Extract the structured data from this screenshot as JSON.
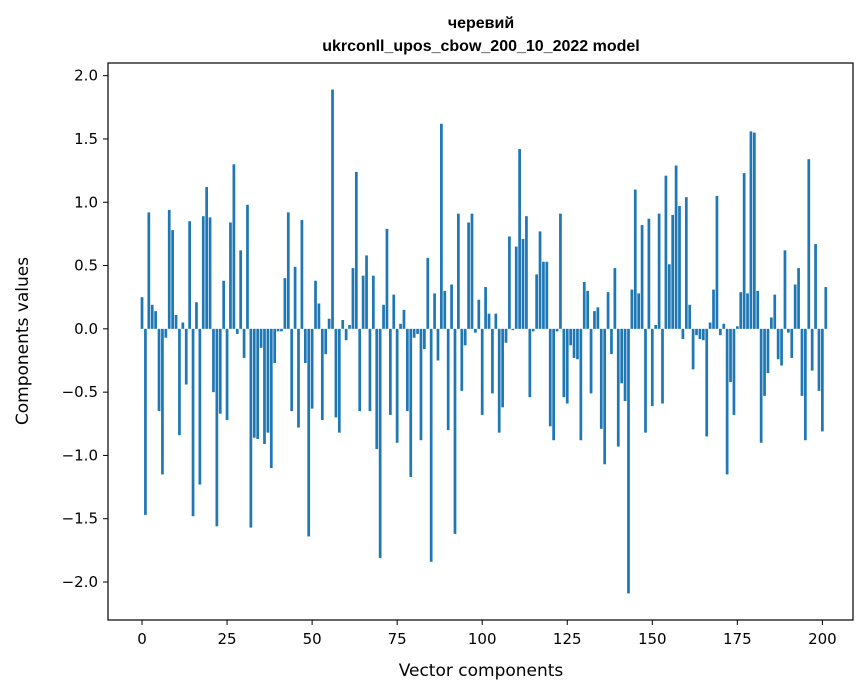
{
  "chart_data": {
    "type": "bar",
    "title_line1": "черевий",
    "title_line2": "ukrconll_upos_cbow_200_10_2022 model",
    "xlabel": "Vector components",
    "ylabel": "Components values",
    "xlim": [
      -10,
      209
    ],
    "ylim": [
      -2.3,
      2.1
    ],
    "x_ticks": [
      0,
      25,
      50,
      75,
      100,
      125,
      150,
      175,
      200
    ],
    "y_ticks": [
      -2.0,
      -1.5,
      -1.0,
      -0.5,
      0.0,
      0.5,
      1.0,
      1.5,
      2.0
    ],
    "x_tick_labels": [
      "0",
      "25",
      "50",
      "75",
      "100",
      "125",
      "150",
      "175",
      "200"
    ],
    "y_tick_labels": [
      "−2.0",
      "−1.5",
      "−1.0",
      "−0.5",
      "0.0",
      "0.5",
      "1.0",
      "1.5",
      "2.0"
    ],
    "bar_color": "#1f77b4",
    "values": [
      0.25,
      -1.47,
      0.92,
      0.19,
      0.14,
      -0.65,
      -1.15,
      -0.07,
      0.94,
      0.78,
      0.11,
      -0.84,
      0.05,
      -0.44,
      0.85,
      -1.48,
      0.21,
      -1.23,
      0.89,
      1.12,
      0.88,
      -0.5,
      -1.56,
      -0.67,
      0.38,
      -0.72,
      0.84,
      1.3,
      -0.04,
      0.62,
      -0.23,
      0.98,
      -1.57,
      -0.86,
      -0.87,
      -0.15,
      -0.91,
      -0.82,
      -1.1,
      -0.27,
      -0.02,
      -0.02,
      0.4,
      0.92,
      -0.65,
      0.49,
      -0.78,
      0.86,
      -0.27,
      -1.64,
      -0.63,
      0.38,
      0.2,
      -0.72,
      -0.2,
      0.08,
      1.89,
      -0.7,
      -0.82,
      0.07,
      -0.09,
      0.03,
      0.48,
      1.24,
      -0.65,
      0.42,
      0.58,
      -0.65,
      0.42,
      -0.95,
      -1.81,
      0.19,
      0.79,
      -0.68,
      0.27,
      -0.9,
      0.04,
      0.15,
      -0.65,
      -1.17,
      -0.07,
      -0.04,
      -0.88,
      -0.16,
      0.56,
      -1.84,
      0.28,
      -0.25,
      1.62,
      0.3,
      -0.8,
      0.35,
      -1.62,
      0.91,
      -0.49,
      -0.13,
      0.84,
      0.91,
      -0.03,
      0.23,
      -0.68,
      0.33,
      0.12,
      -0.51,
      0.12,
      -0.82,
      -0.62,
      -0.11,
      0.73,
      -0.01,
      0.65,
      1.42,
      0.71,
      0.89,
      -0.54,
      -0.02,
      0.43,
      0.77,
      0.53,
      0.53,
      -0.77,
      -0.88,
      -0.02,
      0.91,
      -0.54,
      -0.59,
      -0.13,
      -0.23,
      -0.24,
      -0.88,
      0.37,
      0.3,
      -0.51,
      0.14,
      0.17,
      -0.79,
      -1.07,
      0.29,
      -0.2,
      0.48,
      -0.93,
      -0.43,
      -0.57,
      -2.09,
      0.31,
      1.1,
      0.28,
      0.82,
      -0.82,
      0.87,
      -0.61,
      0.03,
      0.91,
      -0.59,
      1.21,
      0.51,
      0.9,
      1.29,
      0.97,
      -0.08,
      1.04,
      0.19,
      -0.32,
      -0.05,
      -0.08,
      -0.09,
      -0.85,
      0.05,
      0.31,
      1.05,
      -0.05,
      0.04,
      -1.15,
      -0.42,
      -0.68,
      0.02,
      0.29,
      1.23,
      0.28,
      1.56,
      1.55,
      0.3,
      -0.9,
      -0.53,
      -0.35,
      0.09,
      0.27,
      -0.24,
      -0.29,
      0.62,
      -0.03,
      -0.23,
      0.35,
      0.48,
      -0.53,
      -0.88,
      1.34,
      -0.33,
      0.67,
      -0.49,
      -0.81,
      0.33
    ]
  }
}
